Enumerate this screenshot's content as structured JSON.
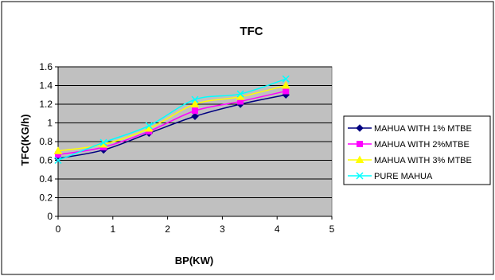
{
  "chart_data": {
    "type": "line",
    "title": "TFC",
    "xlabel": "BP(KW)",
    "ylabel": "TFC(KG/h)",
    "xlim": [
      0,
      5
    ],
    "ylim": [
      0,
      1.6
    ],
    "x_ticks": [
      "0",
      "1",
      "2",
      "3",
      "4",
      "5"
    ],
    "y_ticks": [
      "0",
      "0.2",
      "0.4",
      "0.6",
      "0.8",
      "1",
      "1.2",
      "1.4",
      "1.6"
    ],
    "grid": "horizontal",
    "plot_background": "#c0c0c0",
    "legend_position": "right",
    "series": [
      {
        "name": "MAHUA WITH 1% MTBE",
        "color": "#000080",
        "marker": "diamond",
        "x": [
          0,
          0.83,
          1.66,
          2.5,
          3.33,
          4.16
        ],
        "values": [
          0.62,
          0.71,
          0.89,
          1.07,
          1.2,
          1.3
        ]
      },
      {
        "name": "MAHUA WITH 2%MTBE",
        "color": "#ff00ff",
        "marker": "square",
        "x": [
          0,
          0.83,
          1.66,
          2.5,
          3.33,
          4.16
        ],
        "values": [
          0.66,
          0.74,
          0.91,
          1.13,
          1.23,
          1.34
        ]
      },
      {
        "name": "MAHUA WITH 3% MTBE",
        "color": "#ffff00",
        "marker": "triangle",
        "x": [
          0,
          0.83,
          1.66,
          2.5,
          3.33,
          4.16
        ],
        "values": [
          0.7,
          0.77,
          0.94,
          1.2,
          1.28,
          1.4
        ]
      },
      {
        "name": "PURE MAHUA",
        "color": "#00ffff",
        "marker": "x",
        "x": [
          0,
          0.83,
          1.66,
          2.5,
          3.33,
          4.16
        ],
        "values": [
          0.6,
          0.79,
          0.97,
          1.25,
          1.31,
          1.47
        ]
      }
    ]
  }
}
